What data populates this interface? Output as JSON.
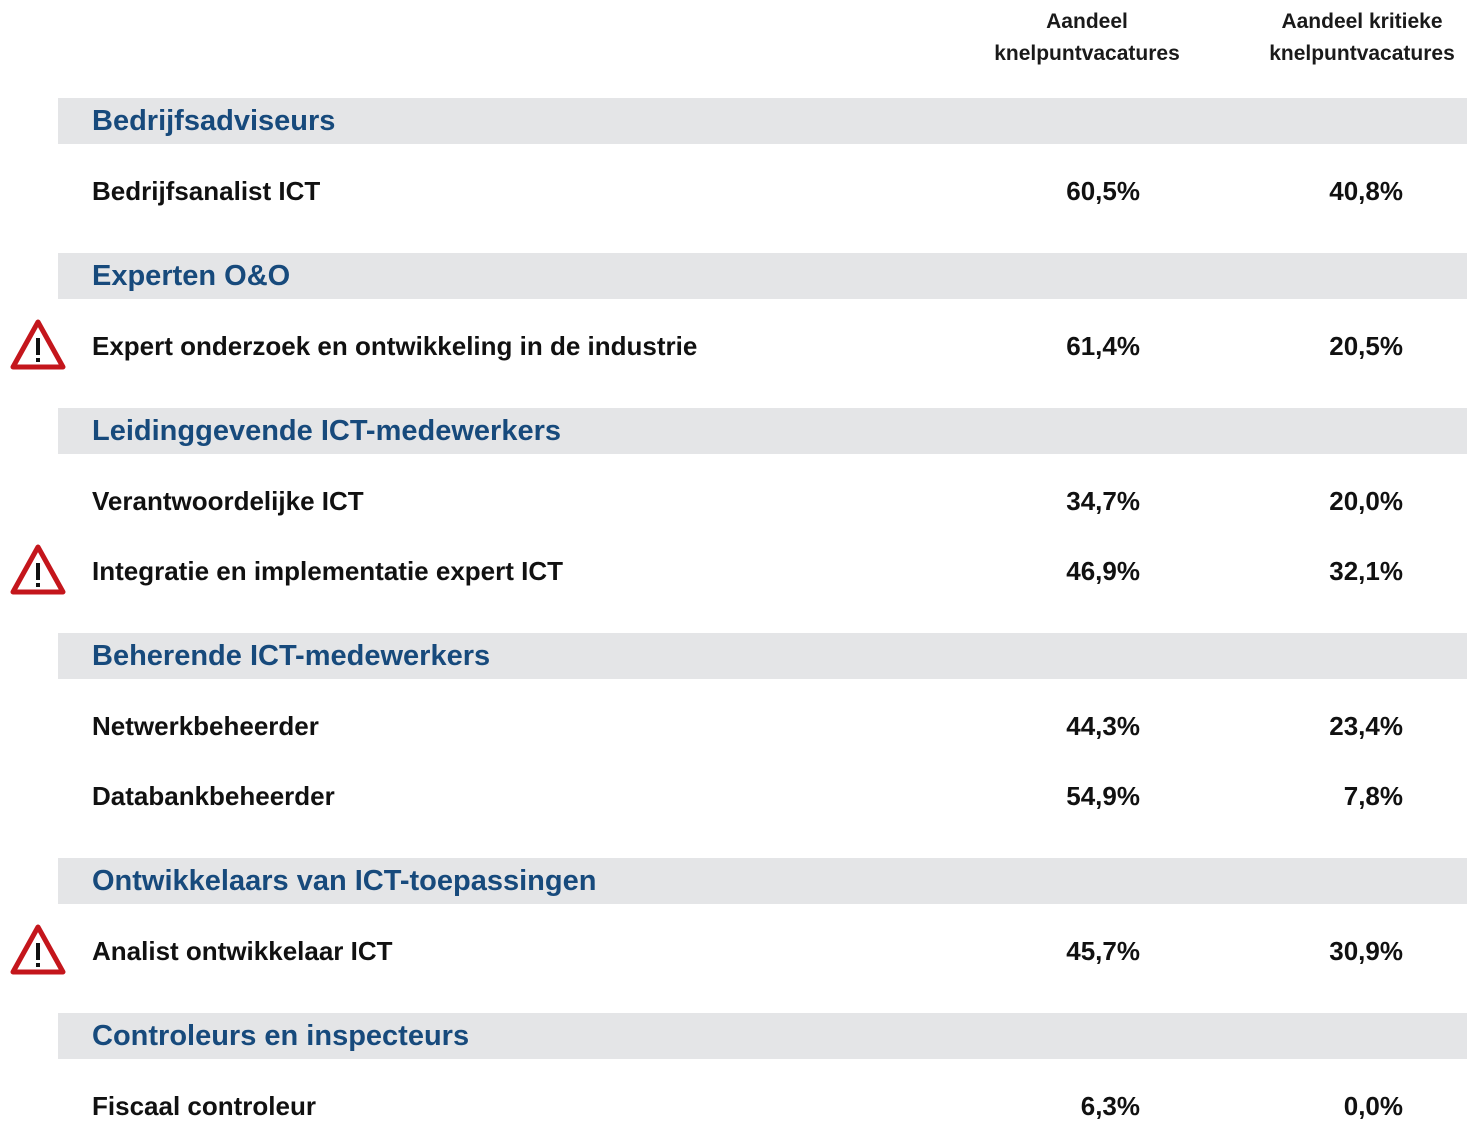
{
  "table": {
    "columns": [
      "Aandeel\nknelpuntvacatures",
      "Aandeel kritieke\nknelpuntvacatures"
    ],
    "groups": [
      {
        "title": "Bedrijfsadviseurs",
        "rows": [
          {
            "label": "Bedrijfsanalist ICT",
            "values": [
              "60,5%",
              "40,8%"
            ],
            "warning": false
          }
        ]
      },
      {
        "title": "Experten O&O",
        "rows": [
          {
            "label": "Expert onderzoek en ontwikkeling in de industrie",
            "values": [
              "61,4%",
              "20,5%"
            ],
            "warning": true
          }
        ]
      },
      {
        "title": "Leidinggevende ICT-medewerkers",
        "rows": [
          {
            "label": "Verantwoordelijke ICT",
            "values": [
              "34,7%",
              "20,0%"
            ],
            "warning": false
          },
          {
            "label": "Integratie en implementatie expert ICT",
            "values": [
              "46,9%",
              "32,1%"
            ],
            "warning": true
          }
        ]
      },
      {
        "title": "Beherende ICT-medewerkers",
        "rows": [
          {
            "label": "Netwerkbeheerder",
            "values": [
              "44,3%",
              "23,4%"
            ],
            "warning": false
          },
          {
            "label": "Databankbeheerder",
            "values": [
              "54,9%",
              "7,8%"
            ],
            "warning": false
          }
        ]
      },
      {
        "title": "Ontwikkelaars van ICT-toepassingen",
        "rows": [
          {
            "label": "Analist ontwikkelaar ICT",
            "values": [
              "45,7%",
              "30,9%"
            ],
            "warning": true
          }
        ]
      },
      {
        "title": "Controleurs en inspecteurs",
        "rows": [
          {
            "label": "Fiscaal controleur",
            "values": [
              "6,3%",
              "0,0%"
            ],
            "warning": false
          }
        ]
      }
    ]
  }
}
